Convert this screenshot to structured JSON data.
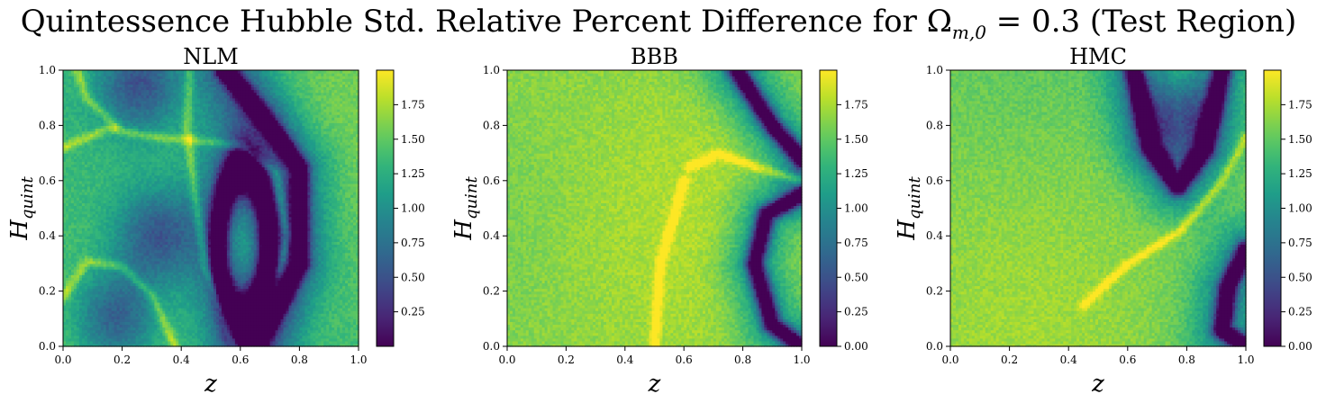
{
  "figure": {
    "suptitle_main": "Quintessence Hubble Std. Relative Percent Difference for Ω",
    "suptitle_sub": "m,0",
    "suptitle_tail": " = 0.3 (Test Region)"
  },
  "chart_data": [
    {
      "type": "heatmap",
      "title": "NLM",
      "xlabel": "z",
      "ylabel": "H_quint",
      "xlim": [
        0.0,
        1.0
      ],
      "ylim": [
        0.0,
        1.0
      ],
      "xticks": [
        "0.0",
        "0.2",
        "0.4",
        "0.6",
        "0.8",
        "1.0"
      ],
      "yticks": [
        "0.0",
        "0.2",
        "0.4",
        "0.6",
        "0.8",
        "1.0"
      ],
      "colormap": "viridis",
      "colorbar_range": [
        0.0,
        2.0
      ],
      "colorbar_ticks": [
        "0.25",
        "0.50",
        "0.75",
        "1.00",
        "1.25",
        "1.50",
        "1.75"
      ],
      "features": {
        "bright_ridges": [
          {
            "shape": "vertical-curve",
            "points": [
              [
                0.43,
                1.0
              ],
              [
                0.42,
                0.8
              ],
              [
                0.44,
                0.6
              ],
              [
                0.48,
                0.3
              ],
              [
                0.58,
                0.0
              ]
            ]
          },
          {
            "shape": "arc",
            "points": [
              [
                0.0,
                0.72
              ],
              [
                0.15,
                0.79
              ],
              [
                0.3,
                0.76
              ],
              [
                0.42,
                0.75
              ],
              [
                0.6,
                0.73
              ],
              [
                0.72,
                0.63
              ],
              [
                0.76,
                0.4
              ],
              [
                0.7,
                0.12
              ],
              [
                0.62,
                0.0
              ]
            ]
          },
          {
            "shape": "arc",
            "points": [
              [
                0.0,
                0.18
              ],
              [
                0.08,
                0.31
              ],
              [
                0.2,
                0.29
              ],
              [
                0.3,
                0.19
              ],
              [
                0.38,
                0.0
              ]
            ]
          },
          {
            "shape": "curve",
            "points": [
              [
                0.05,
                1.0
              ],
              [
                0.08,
                0.9
              ],
              [
                0.18,
                0.8
              ]
            ]
          }
        ],
        "dark_troughs": [
          {
            "shape": "ellipse",
            "center": [
              0.61,
              0.37
            ],
            "radius": [
              0.085,
              0.27
            ]
          },
          {
            "shape": "arc",
            "points": [
              [
                0.55,
                1.0
              ],
              [
                0.67,
                0.84
              ],
              [
                0.8,
                0.65
              ],
              [
                0.8,
                0.3
              ],
              [
                0.65,
                0.0
              ]
            ]
          }
        ],
        "dark_blobs": [
          [
            0.26,
            0.95
          ],
          [
            0.18,
            0.1
          ],
          [
            0.32,
            0.4
          ]
        ],
        "background_level": 1.45
      }
    },
    {
      "type": "heatmap",
      "title": "BBB",
      "xlabel": "z",
      "ylabel": "H_quint",
      "xlim": [
        0.0,
        1.0
      ],
      "ylim": [
        0.0,
        1.0
      ],
      "xticks": [
        "0.0",
        "0.2",
        "0.4",
        "0.6",
        "0.8",
        "1.0"
      ],
      "yticks": [
        "0.0",
        "0.2",
        "0.4",
        "0.6",
        "0.8",
        "1.0"
      ],
      "colormap": "viridis",
      "colorbar_range": [
        0.0,
        2.0
      ],
      "colorbar_ticks": [
        "0.00",
        "0.25",
        "0.50",
        "0.75",
        "1.00",
        "1.25",
        "1.50",
        "1.75"
      ],
      "features": {
        "bright_ridges": [
          {
            "shape": "curve",
            "points": [
              [
                0.62,
                0.65
              ],
              [
                0.72,
                0.7
              ],
              [
                0.82,
                0.66
              ],
              [
                1.0,
                0.6
              ]
            ]
          },
          {
            "shape": "band",
            "points": [
              [
                0.5,
                0.0
              ],
              [
                0.52,
                0.3
              ],
              [
                0.6,
                0.6
              ]
            ]
          }
        ],
        "dark_troughs": [
          {
            "shape": "arc",
            "points": [
              [
                0.78,
                1.0
              ],
              [
                0.9,
                0.8
              ],
              [
                1.0,
                0.68
              ]
            ]
          },
          {
            "shape": "arc",
            "points": [
              [
                1.0,
                0.55
              ],
              [
                0.88,
                0.48
              ],
              [
                0.84,
                0.3
              ],
              [
                0.9,
                0.08
              ],
              [
                1.0,
                0.0
              ]
            ]
          }
        ],
        "dark_blobs": [],
        "background_level": 1.65
      }
    },
    {
      "type": "heatmap",
      "title": "HMC",
      "xlabel": "z",
      "ylabel": "H_quint",
      "xlim": [
        0.0,
        1.0
      ],
      "ylim": [
        0.0,
        1.0
      ],
      "xticks": [
        "0.0",
        "0.2",
        "0.4",
        "0.6",
        "0.8",
        "1.0"
      ],
      "yticks": [
        "0.0",
        "0.2",
        "0.4",
        "0.6",
        "0.8",
        "1.0"
      ],
      "colormap": "viridis",
      "colorbar_range": [
        0.0,
        2.0
      ],
      "colorbar_ticks": [
        "0.00",
        "0.25",
        "0.50",
        "0.75",
        "1.00",
        "1.25",
        "1.50",
        "1.75"
      ],
      "features": {
        "bright_ridges": [
          {
            "shape": "curve",
            "points": [
              [
                0.45,
                0.15
              ],
              [
                0.6,
                0.3
              ],
              [
                0.78,
                0.42
              ],
              [
                0.92,
                0.6
              ],
              [
                1.0,
                0.76
              ]
            ]
          }
        ],
        "dark_troughs": [
          {
            "shape": "arc",
            "points": [
              [
                0.62,
                1.0
              ],
              [
                0.68,
                0.72
              ],
              [
                0.77,
                0.58
              ],
              [
                0.86,
                0.72
              ],
              [
                0.92,
                1.0
              ]
            ]
          },
          {
            "shape": "arc",
            "points": [
              [
                1.0,
                0.35
              ],
              [
                0.94,
                0.22
              ],
              [
                0.92,
                0.06
              ],
              [
                1.0,
                0.0
              ]
            ]
          }
        ],
        "dark_blobs": [
          [
            0.77,
            0.82
          ]
        ],
        "background_level": 1.6
      }
    }
  ]
}
